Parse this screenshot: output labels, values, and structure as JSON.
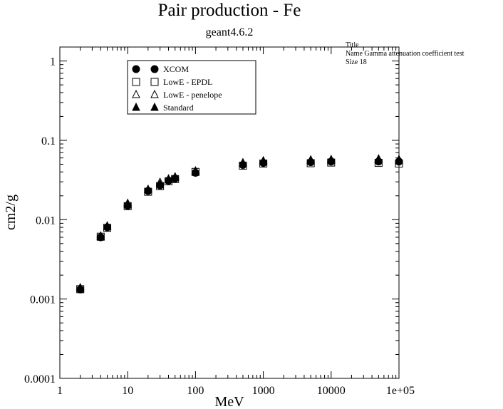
{
  "header": {
    "title": "Pair production - Fe",
    "subtitle": "geant4.6.2"
  },
  "info_box": {
    "line1": "Title",
    "line2": "Name  Gamma attenuation coefficient test",
    "line3": "Size  18"
  },
  "chart_data": {
    "type": "scatter",
    "title": "Pair production - Fe",
    "subtitle": "geant4.6.2",
    "xlabel": "MeV",
    "ylabel": "cm2/g",
    "xscale": "log",
    "yscale": "log",
    "xlim": [
      1,
      100000
    ],
    "ylim": [
      0.0001,
      1.5
    ],
    "grid": false,
    "legend_position": "top-left",
    "x_ticks": [
      {
        "value": 1,
        "label": "1"
      },
      {
        "value": 10,
        "label": "10"
      },
      {
        "value": 100,
        "label": "100"
      },
      {
        "value": 1000,
        "label": "1000"
      },
      {
        "value": 10000,
        "label": "10000"
      },
      {
        "value": 100000,
        "label": "1e+05"
      }
    ],
    "y_ticks": [
      {
        "value": 0.0001,
        "label": "0.0001"
      },
      {
        "value": 0.001,
        "label": "0.001"
      },
      {
        "value": 0.01,
        "label": "0.01"
      },
      {
        "value": 0.1,
        "label": "0.1"
      },
      {
        "value": 1,
        "label": "1"
      }
    ],
    "series": [
      {
        "name": "XCOM",
        "marker": "filled-circle",
        "color": "#000000",
        "x": [
          2,
          4,
          5,
          10,
          20,
          30,
          40,
          50,
          100,
          500,
          1000,
          5000,
          10000,
          50000,
          100000
        ],
        "y": [
          0.00132,
          0.006,
          0.008,
          0.015,
          0.023,
          0.027,
          0.031,
          0.033,
          0.039,
          0.049,
          0.052,
          0.053,
          0.054,
          0.054,
          0.054
        ]
      },
      {
        "name": "LowE - EPDL",
        "marker": "open-square",
        "color": "#000000",
        "x": [
          2,
          4,
          5,
          10,
          20,
          30,
          40,
          50,
          100,
          500,
          1000,
          5000,
          10000,
          50000,
          100000
        ],
        "y": [
          0.00133,
          0.0061,
          0.0079,
          0.0148,
          0.0225,
          0.0265,
          0.0305,
          0.0325,
          0.04,
          0.048,
          0.051,
          0.0515,
          0.0525,
          0.052,
          0.051
        ]
      },
      {
        "name": "LowE - penelope",
        "marker": "open-triangle",
        "color": "#000000",
        "x": [
          2,
          4,
          5,
          10,
          20,
          30,
          40,
          50,
          100,
          500,
          1000,
          5000,
          10000,
          50000,
          100000
        ],
        "y": [
          0.00136,
          0.0062,
          0.0083,
          0.0156,
          0.0238,
          0.0295,
          0.032,
          0.034,
          0.041,
          0.051,
          0.0545,
          0.0555,
          0.056,
          0.057,
          0.0565
        ]
      },
      {
        "name": "Standard",
        "marker": "filled-triangle",
        "color": "#000000",
        "x": [
          2,
          4,
          5,
          10,
          20,
          30,
          40,
          50,
          100,
          500,
          1000,
          5000,
          10000,
          50000,
          100000
        ],
        "y": [
          0.00138,
          0.0061,
          0.0082,
          0.016,
          0.024,
          0.028,
          0.0325,
          0.0345,
          0.0405,
          0.052,
          0.055,
          0.0565,
          0.057,
          0.058,
          0.057
        ]
      }
    ]
  }
}
